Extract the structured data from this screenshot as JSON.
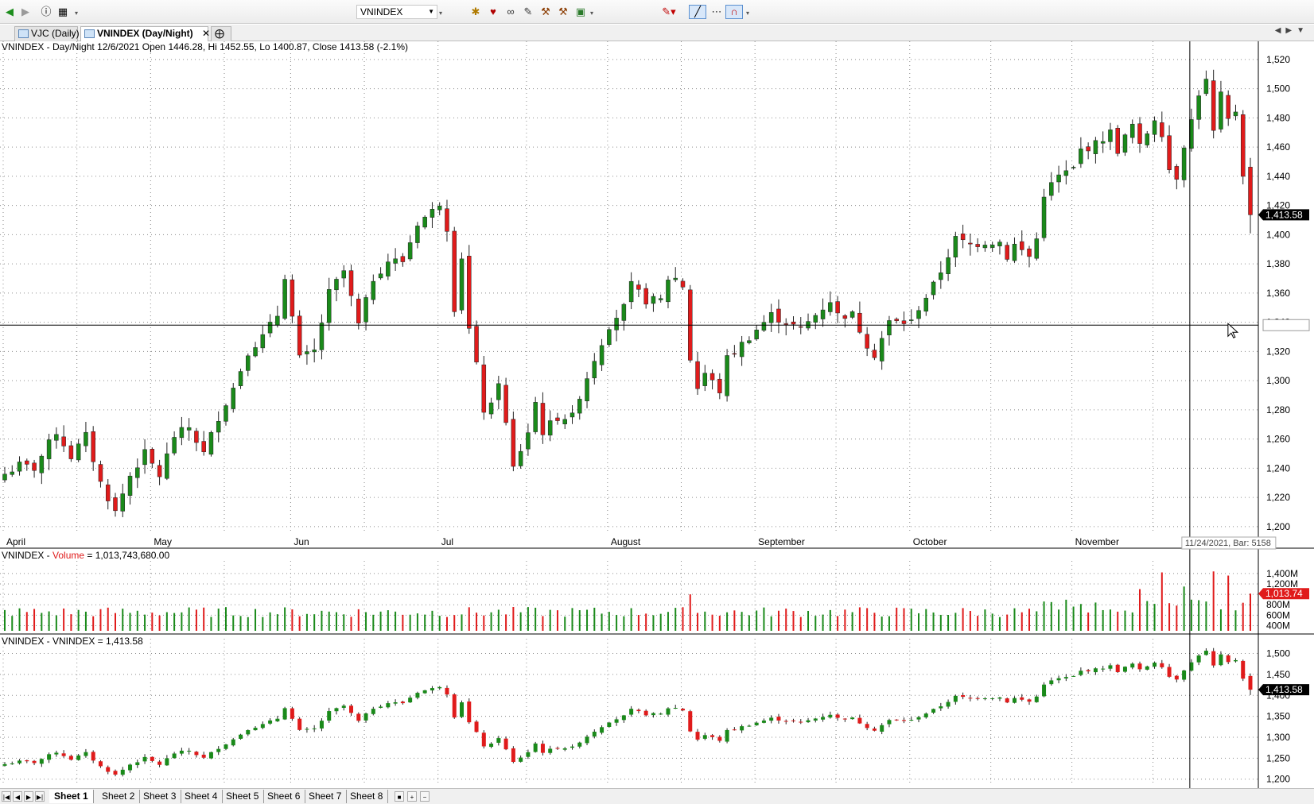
{
  "toolbar": {
    "symbol": "VNINDEX",
    "icons": [
      "back-icon",
      "forward-icon",
      "info-icon",
      "calendar-icon",
      "tool-icon",
      "tool-icon",
      "tool-icon",
      "tool-icon",
      "tool-icon",
      "tool-icon",
      "tool-icon",
      "pen-color-icon",
      "draw-line-icon",
      "dotted-line-icon",
      "magnet-icon"
    ]
  },
  "tabs": [
    {
      "label": "VJC (Daily)",
      "active": false
    },
    {
      "label": "VNINDEX (Day/Night)",
      "active": true
    }
  ],
  "sheets": [
    "Sheet 1",
    "Sheet 2",
    "Sheet 3",
    "Sheet 4",
    "Sheet 5",
    "Sheet 6",
    "Sheet 7",
    "Sheet 8"
  ],
  "colors": {
    "up": "#1a8a1a",
    "down": "#e01b1b",
    "grid": "#8c8c8c",
    "last_price_bg": "#000000",
    "volume_last_bg": "#e01b1b"
  },
  "chart_data": [
    {
      "type": "candlestick",
      "title": "VNINDEX - Day/Night 12/6/2021 Open 1446.28, Hi 1452.55, Lo 1400.87, Close 1413.58 (-2.1%)",
      "ylim": [
        1195,
        1527
      ],
      "y_ticks": [
        1200,
        1220,
        1240,
        1260,
        1280,
        1300,
        1320,
        1340,
        1360,
        1380,
        1400,
        1420,
        1440,
        1460,
        1480,
        1500,
        1520
      ],
      "last_price_label": "1,413.58",
      "crosshair_price": 1338,
      "month_labels": [
        "April",
        "May",
        "Jun",
        "Jul",
        "August",
        "September",
        "October",
        "November"
      ],
      "month_label_bars": [
        0,
        20,
        39,
        59,
        82,
        102,
        123,
        145
      ],
      "crosshair_bar": 161,
      "crosshair_tooltip": "11/24/2021, Bar: 5158",
      "grid": true,
      "anchors": [
        [
          0,
          1236
        ],
        [
          2,
          1242
        ],
        [
          4,
          1240
        ],
        [
          7,
          1265
        ],
        [
          9,
          1248
        ],
        [
          11,
          1262
        ],
        [
          13,
          1230
        ],
        [
          15,
          1210
        ],
        [
          17,
          1235
        ],
        [
          19,
          1250
        ],
        [
          21,
          1235
        ],
        [
          23,
          1262
        ],
        [
          25,
          1268
        ],
        [
          27,
          1250
        ],
        [
          29,
          1275
        ],
        [
          31,
          1295
        ],
        [
          33,
          1320
        ],
        [
          35,
          1330
        ],
        [
          37,
          1345
        ],
        [
          38,
          1372
        ],
        [
          40,
          1315
        ],
        [
          42,
          1320
        ],
        [
          44,
          1360
        ],
        [
          46,
          1375
        ],
        [
          48,
          1338
        ],
        [
          50,
          1370
        ],
        [
          52,
          1382
        ],
        [
          54,
          1382
        ],
        [
          56,
          1408
        ],
        [
          58,
          1416
        ],
        [
          59,
          1422
        ],
        [
          60,
          1405
        ],
        [
          61,
          1350
        ],
        [
          62,
          1385
        ],
        [
          63,
          1335
        ],
        [
          64,
          1310
        ],
        [
          65,
          1280
        ],
        [
          66,
          1282
        ],
        [
          67,
          1300
        ],
        [
          69,
          1240
        ],
        [
          71,
          1265
        ],
        [
          72,
          1285
        ],
        [
          73,
          1265
        ],
        [
          75,
          1275
        ],
        [
          77,
          1275
        ],
        [
          78,
          1290
        ],
        [
          80,
          1315
        ],
        [
          82,
          1338
        ],
        [
          84,
          1350
        ],
        [
          85,
          1365
        ],
        [
          87,
          1355
        ],
        [
          89,
          1355
        ],
        [
          90,
          1370
        ],
        [
          91,
          1370
        ],
        [
          92,
          1365
        ],
        [
          93,
          1315
        ],
        [
          94,
          1295
        ],
        [
          95,
          1305
        ],
        [
          97,
          1293
        ],
        [
          98,
          1315
        ],
        [
          100,
          1325
        ],
        [
          102,
          1335
        ],
        [
          104,
          1345
        ],
        [
          106,
          1340
        ],
        [
          108,
          1335
        ],
        [
          110,
          1345
        ],
        [
          112,
          1355
        ],
        [
          113,
          1345
        ],
        [
          115,
          1345
        ],
        [
          117,
          1325
        ],
        [
          118,
          1318
        ],
        [
          120,
          1340
        ],
        [
          122,
          1340
        ],
        [
          123,
          1340
        ],
        [
          124,
          1350
        ],
        [
          126,
          1365
        ],
        [
          127,
          1375
        ],
        [
          129,
          1397
        ],
        [
          131,
          1393
        ],
        [
          133,
          1395
        ],
        [
          135,
          1395
        ],
        [
          136,
          1385
        ],
        [
          137,
          1393
        ],
        [
          139,
          1385
        ],
        [
          140,
          1397
        ],
        [
          141,
          1428
        ],
        [
          143,
          1440
        ],
        [
          145,
          1445
        ],
        [
          146,
          1458
        ],
        [
          148,
          1462
        ],
        [
          150,
          1470
        ],
        [
          151,
          1458
        ],
        [
          153,
          1475
        ],
        [
          154,
          1460
        ],
        [
          156,
          1480
        ],
        [
          157,
          1470
        ],
        [
          158,
          1445
        ],
        [
          159,
          1440
        ],
        [
          160,
          1462
        ],
        [
          161,
          1478
        ],
        [
          162,
          1497
        ],
        [
          163,
          1505
        ],
        [
          164,
          1470
        ],
        [
          165,
          1495
        ],
        [
          166,
          1478
        ],
        [
          167,
          1485
        ],
        [
          168,
          1442
        ],
        [
          169,
          1413.58
        ]
      ],
      "final_bar_ohlc": {
        "open": 1446.28,
        "high": 1452.55,
        "low": 1400.87,
        "close": 1413.58
      }
    },
    {
      "type": "bar",
      "title": "VNINDEX - Volume = 1,013,743,680.00",
      "title_prefix": "VNINDEX - ",
      "title_series": "Volume",
      "title_value": " = 1,013,743,680.00",
      "ylim": [
        300,
        1520
      ],
      "y_ticks_m": [
        400,
        600,
        800,
        1000,
        1200,
        1400
      ],
      "y_tick_labels": [
        "400M",
        "600M",
        "800M",
        "",
        "1,200M",
        "1,400M"
      ],
      "last_value_label": "1,013.74",
      "last_value_m": 1013.74,
      "spike_bars": {
        "93": 1000,
        "157": 1420,
        "164": 1440,
        "166": 1360,
        "160": 1150,
        "154": 1100
      }
    },
    {
      "type": "candlestick",
      "title": "VNINDEX - VNINDEX = 1,413.58",
      "ylim": [
        1190,
        1520
      ],
      "y_ticks": [
        1200,
        1250,
        1300,
        1350,
        1400,
        1450,
        1500
      ],
      "y_tick_labels": [
        "1,200",
        "1,250",
        "1,300",
        "1,350",
        "1,400",
        "1,450",
        "1,500"
      ],
      "last_price_label": "1,413.58"
    }
  ]
}
